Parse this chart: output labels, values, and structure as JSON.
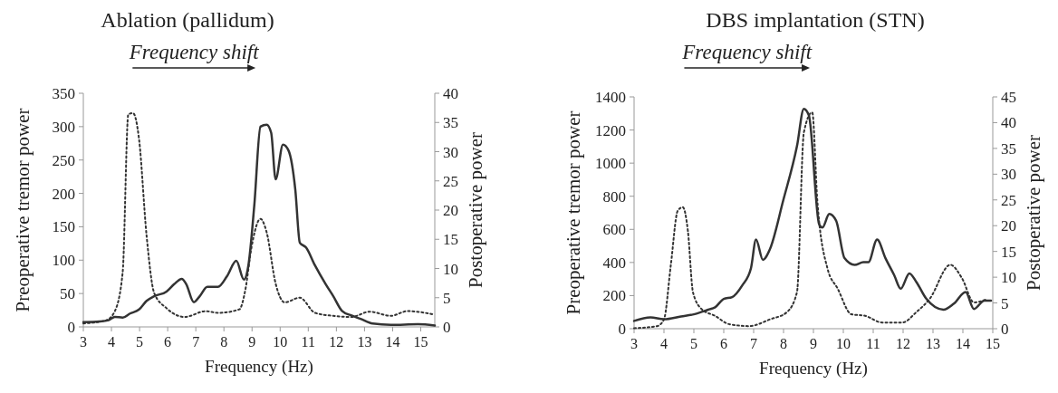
{
  "chart_data": [
    {
      "type": "line",
      "title": "Ablation (pallidum)",
      "xlabel": "Frequency (Hz)",
      "ylabel": "Preoperative tremor power",
      "y2label": "Postoperative power",
      "annotations": [
        "Frequency shift"
      ],
      "xlim": [
        3,
        15.5
      ],
      "xticks": [
        3,
        4,
        5,
        6,
        7,
        8,
        9,
        10,
        11,
        12,
        13,
        14,
        15
      ],
      "ylim": [
        0,
        350
      ],
      "yticks": [
        0,
        50,
        100,
        150,
        200,
        250,
        300,
        350
      ],
      "y2lim": [
        0,
        40
      ],
      "y2ticks": [
        0,
        5,
        10,
        15,
        20,
        25,
        30,
        35,
        40
      ],
      "grid": false,
      "series": [
        {
          "color": "#333333",
          "line_style": "solid",
          "x": [
            3,
            3.58,
            3.9,
            4.12,
            4.4,
            4.66,
            4.98,
            5.25,
            5.52,
            5.96,
            6.23,
            6.5,
            6.66,
            6.93,
            7.14,
            7.41,
            7.79,
            8.11,
            8.44,
            8.71,
            8.87,
            9.08,
            9.3,
            9.52,
            9.68,
            9.84,
            10.1,
            10.3,
            10.54,
            10.7,
            10.92,
            11.24,
            11.62,
            11.89,
            12.2,
            12.54,
            12.86,
            13.29,
            13.94,
            14.9,
            15.5
          ],
          "values": [
            7,
            8,
            10,
            15,
            14,
            20,
            26,
            39,
            46,
            53,
            64,
            72,
            64,
            37,
            46,
            60,
            60,
            76,
            99,
            71,
            92,
            182,
            300,
            303,
            291,
            221,
            273,
            264,
            205,
            126,
            119,
            92,
            64,
            46,
            24,
            17,
            12,
            5,
            3,
            4,
            2
          ]
        },
        {
          "color": "#333333",
          "line_style": "dotted",
          "axis": "y2",
          "x": [
            3,
            3.8,
            4.12,
            4.4,
            4.6,
            4.77,
            4.98,
            5.25,
            5.52,
            5.96,
            6.6,
            7.36,
            7.79,
            8.55,
            8.76,
            8.98,
            9.3,
            9.52,
            9.84,
            10.16,
            10.7,
            11.24,
            11.89,
            12.54,
            13.18,
            13.94,
            14.53,
            15.5
          ],
          "values": [
            0.6,
            1.1,
            2.7,
            9.4,
            36.4,
            36.6,
            32.2,
            15.6,
            5.8,
            3.2,
            1.7,
            2.7,
            2.4,
            3.0,
            6.3,
            13.6,
            18.5,
            16.2,
            7.4,
            4.2,
            5.0,
            2.4,
            1.9,
            1.7,
            2.6,
            1.9,
            2.7,
            2.1
          ]
        }
      ]
    },
    {
      "type": "line",
      "title": "DBS implantation (STN)",
      "xlabel": "Frequency (Hz)",
      "ylabel": "Preoperative tremor power",
      "y2label": "Postoperative power",
      "annotations": [
        "Frequency shift"
      ],
      "xlim": [
        3,
        15
      ],
      "xticks": [
        3,
        4,
        5,
        6,
        7,
        8,
        9,
        10,
        11,
        12,
        13,
        14,
        15
      ],
      "ylim": [
        0,
        1400
      ],
      "yticks": [
        0,
        200,
        400,
        600,
        800,
        1000,
        1200,
        1400
      ],
      "y2lim": [
        0,
        45
      ],
      "y2ticks": [
        0,
        5,
        10,
        15,
        20,
        25,
        30,
        35,
        40,
        45
      ],
      "grid": false,
      "series": [
        {
          "color": "#333333",
          "line_style": "solid",
          "x": [
            3,
            3.55,
            4.0,
            4.57,
            5.03,
            5.48,
            5.71,
            6.0,
            6.28,
            6.62,
            6.91,
            7.08,
            7.31,
            7.54,
            7.99,
            8.45,
            8.68,
            8.85,
            9.19,
            9.3,
            9.53,
            9.76,
            10.04,
            10.38,
            10.67,
            10.84,
            11.13,
            11.41,
            11.7,
            11.92,
            12.21,
            12.44,
            12.78,
            13.35,
            13.69,
            14.09,
            14.37,
            14.72,
            14.94
          ],
          "values": [
            47,
            68,
            57,
            74,
            88,
            115,
            129,
            180,
            191,
            262,
            365,
            539,
            416,
            478,
            775,
            1103,
            1328,
            1287,
            631,
            611,
            693,
            652,
            426,
            385,
            402,
            402,
            539,
            426,
            324,
            242,
            334,
            283,
            180,
            115,
            150,
            221,
            119,
            170,
            170
          ]
        },
        {
          "color": "#333333",
          "line_style": "dotted",
          "axis": "y2",
          "x": [
            3,
            3.77,
            4.0,
            4.23,
            4.46,
            4.63,
            4.8,
            4.97,
            5.26,
            5.71,
            6.17,
            6.85,
            7.54,
            8.11,
            8.45,
            8.68,
            8.96,
            9.13,
            9.47,
            9.81,
            10.27,
            10.73,
            11.3,
            11.98,
            12.44,
            12.89,
            13.58,
            13.97,
            14.37,
            14.83
          ],
          "values": [
            0.1,
            0.5,
            1.8,
            12.4,
            22.9,
            23.6,
            19.0,
            7.1,
            3.8,
            2.5,
            0.9,
            0.5,
            1.8,
            3.2,
            7.1,
            38.1,
            42.0,
            24.9,
            11.7,
            7.8,
            2.8,
            2.5,
            1.2,
            1.2,
            3.2,
            5.8,
            12.4,
            9.8,
            5.1,
            5.8
          ]
        }
      ]
    }
  ]
}
